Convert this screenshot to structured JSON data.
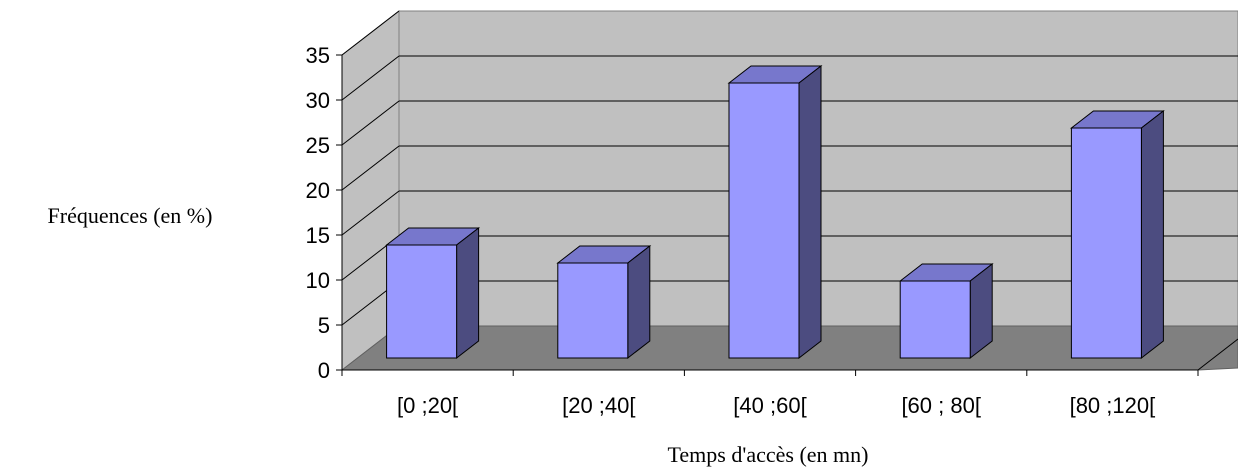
{
  "chart_data": {
    "type": "bar",
    "categories": [
      "[0 ;20[",
      "[20 ;40[",
      "[40 ;60[",
      "[60 ; 80[",
      "[80 ;120["
    ],
    "values": [
      15,
      13,
      33,
      11,
      28
    ],
    "title": "",
    "xlabel": "Temps d'accès (en mn)",
    "ylabel": "Fréquences (en %)",
    "ylim": [
      0,
      35
    ],
    "yticks": [
      0,
      5,
      10,
      15,
      20,
      25,
      30,
      35
    ],
    "grid": true,
    "legend": "none",
    "colors": {
      "bar_front": "#9999ff",
      "bar_top": "#7777cc",
      "bar_side": "#4c4c80",
      "back_wall": "#c0c0c0",
      "side_wall": "#c0c0c0",
      "floor": "#808080"
    }
  }
}
